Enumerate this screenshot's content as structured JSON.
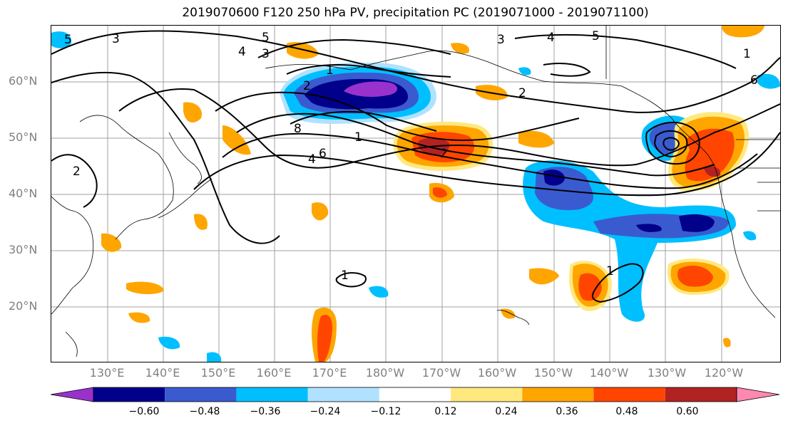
{
  "title": "2019070600 F120 250 hPa PV, precipitation PC (2019071000 - 2019071100)",
  "lat_labels": [
    "60°N",
    "50°N",
    "40°N",
    "30°N",
    "20°N"
  ],
  "lon_labels": [
    "130°E",
    "140°E",
    "150°E",
    "160°E",
    "170°E",
    "180°W",
    "170°W",
    "160°W",
    "150°W",
    "140°W",
    "130°W",
    "120°W"
  ],
  "colorbar": {
    "ticks": [
      "−0.60",
      "−0.48",
      "−0.36",
      "−0.24",
      "−0.12",
      "0.12",
      "0.24",
      "0.36",
      "0.48",
      "0.60"
    ],
    "colors": [
      "#9932cc",
      "#00008b",
      "#3a5bcf",
      "#00bfff",
      "#b0e2ff",
      "#ffffff",
      "#ffe97f",
      "#ffa500",
      "#ff4500",
      "#b22222",
      "#ff88b0"
    ]
  },
  "contour_labels": [
    "5",
    "4",
    "3",
    "2",
    "1",
    "4",
    "5",
    "3",
    "8",
    "6",
    "4",
    "2",
    "1",
    "6",
    "3",
    "2",
    "5",
    "1",
    "2",
    "1",
    "1"
  ]
}
